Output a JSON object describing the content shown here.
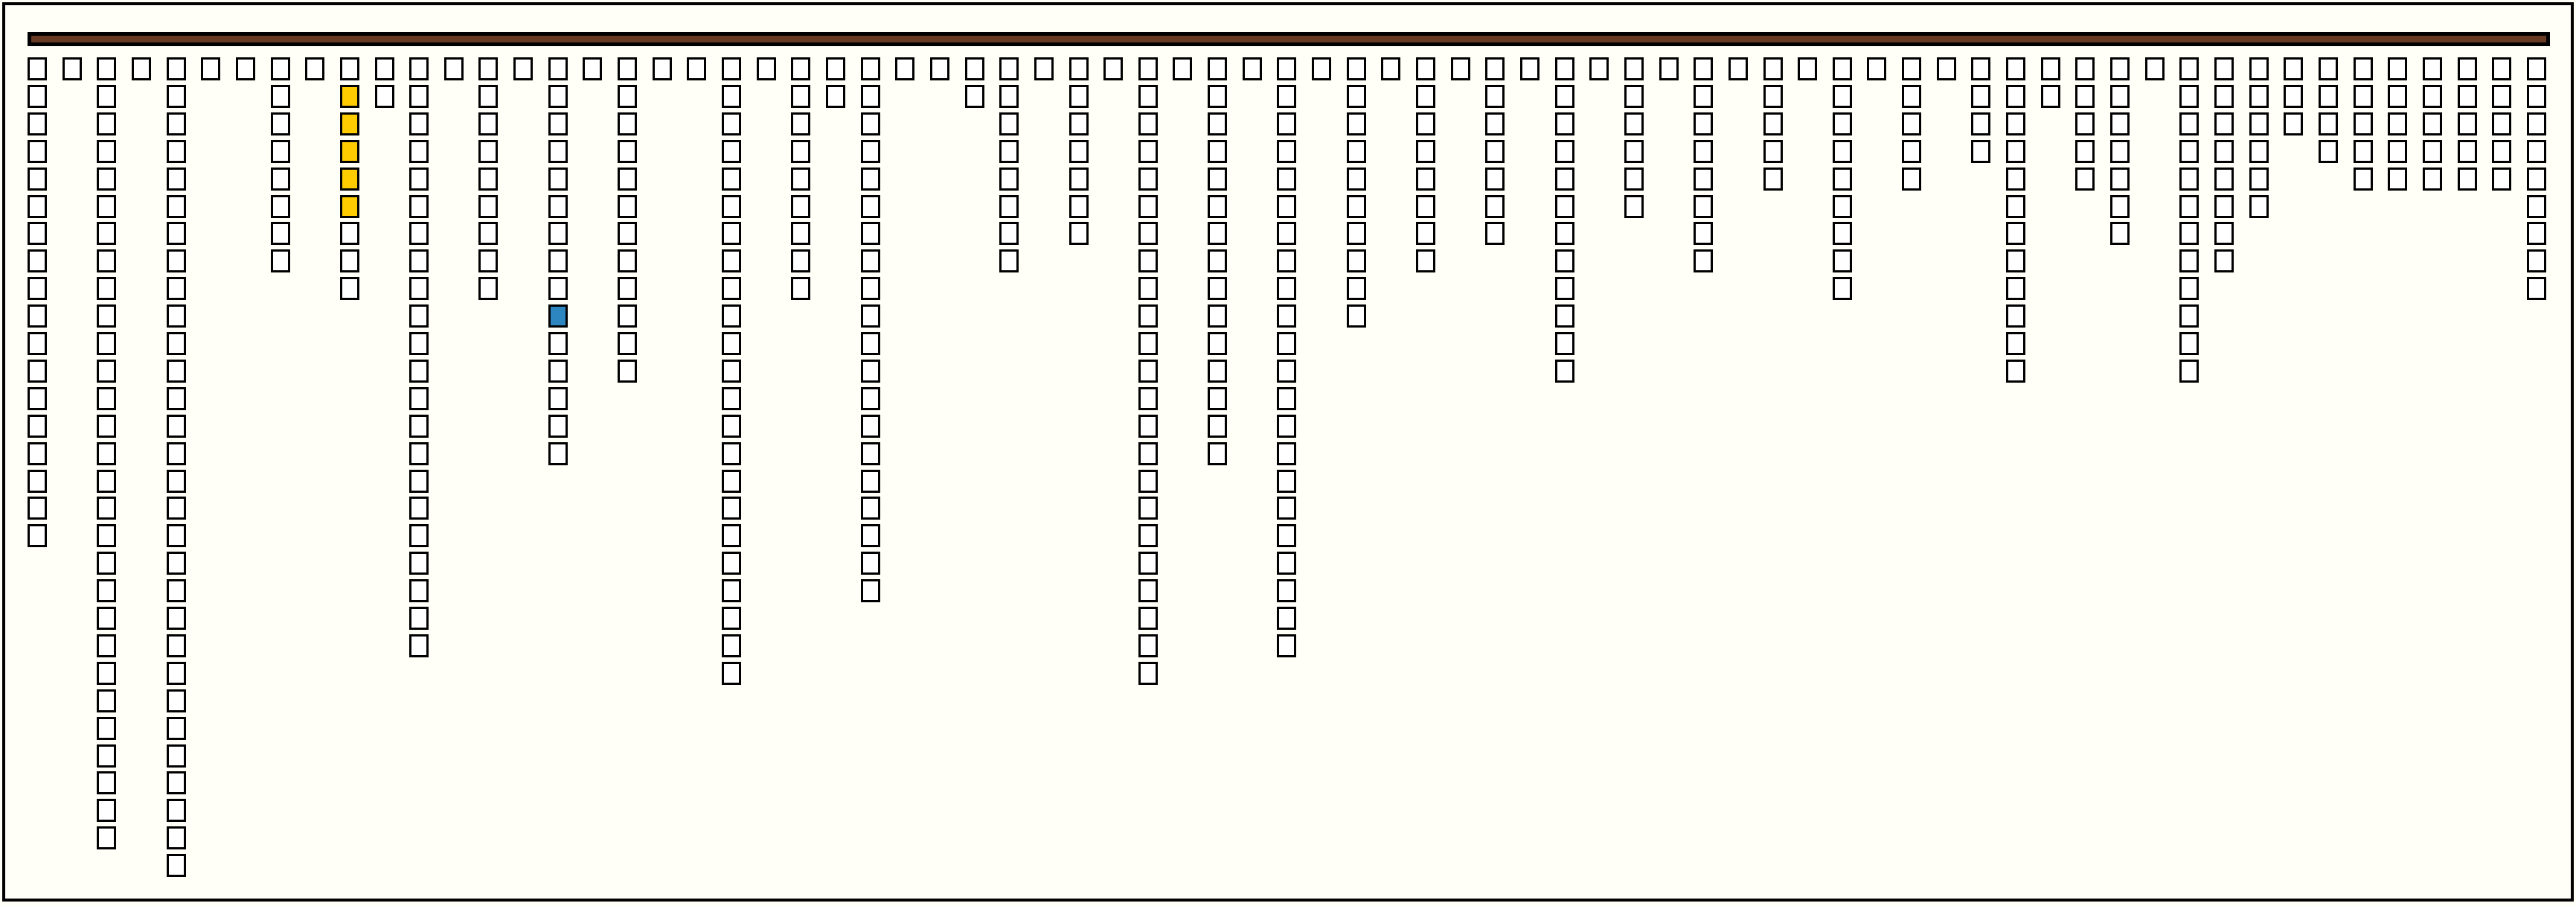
{
  "colors": {
    "background": "#fffff8",
    "bar": "#683a22",
    "cell_default": "#ffffff",
    "cell_yellow": "#ffcc00",
    "cell_blue": "#2e86c1",
    "border": "#000000"
  },
  "board": {
    "column_heights": [
      18,
      1,
      29,
      1,
      30,
      1,
      1,
      8,
      1,
      9,
      2,
      22,
      1,
      9,
      1,
      15,
      1,
      12,
      1,
      1,
      23,
      1,
      9,
      2,
      20,
      1,
      1,
      2,
      8,
      1,
      7,
      1,
      23,
      1,
      15,
      1,
      22,
      1,
      10,
      1,
      8,
      1,
      7,
      1,
      12,
      1,
      6,
      1,
      8,
      1,
      5,
      1,
      9,
      1,
      5,
      1,
      4,
      12,
      2,
      5,
      7,
      1,
      12,
      8,
      6,
      3,
      4,
      5,
      5,
      5,
      5,
      5,
      9
    ],
    "highlighted_cells": [
      {
        "column": 9,
        "row": 1,
        "color": "yellow"
      },
      {
        "column": 9,
        "row": 2,
        "color": "yellow"
      },
      {
        "column": 9,
        "row": 3,
        "color": "yellow"
      },
      {
        "column": 9,
        "row": 4,
        "color": "yellow"
      },
      {
        "column": 9,
        "row": 5,
        "color": "yellow"
      },
      {
        "column": 15,
        "row": 9,
        "color": "blue"
      }
    ]
  }
}
